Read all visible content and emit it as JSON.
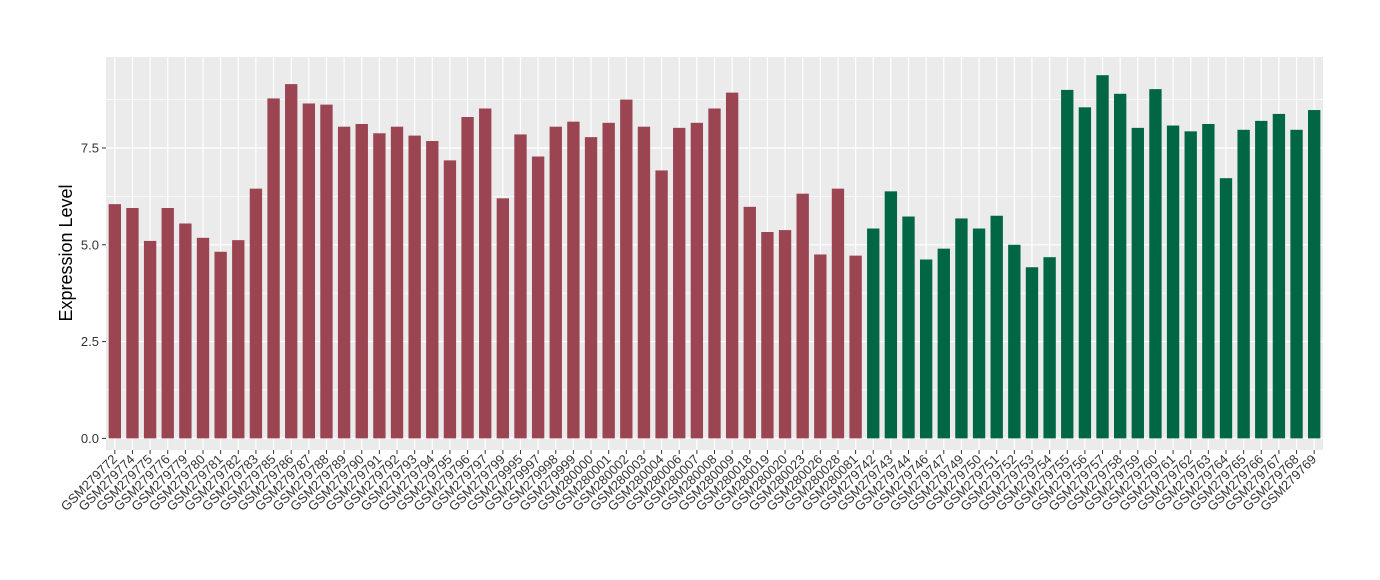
{
  "chart_data": {
    "type": "bar",
    "title": "",
    "xlabel": "",
    "ylabel": "Expression Level",
    "ylim": [
      -0.3,
      9.85
    ],
    "yticks": [
      "0.0",
      "2.5",
      "5.0",
      "7.5"
    ],
    "ytick_values": [
      0,
      2.5,
      5.0,
      7.5
    ],
    "grid": true,
    "legend": "none",
    "background_color": "#EBEBEB",
    "grid_color": "#FFFFFF",
    "categories": [
      "GSM279772",
      "GSM279774",
      "GSM279775",
      "GSM279776",
      "GSM279779",
      "GSM279780",
      "GSM279781",
      "GSM279782",
      "GSM279783",
      "GSM279785",
      "GSM279786",
      "GSM279787",
      "GSM279788",
      "GSM279789",
      "GSM279790",
      "GSM279791",
      "GSM279792",
      "GSM279793",
      "GSM279794",
      "GSM279795",
      "GSM279796",
      "GSM279797",
      "GSM279799",
      "GSM279995",
      "GSM279997",
      "GSM279998",
      "GSM279999",
      "GSM280000",
      "GSM280001",
      "GSM280002",
      "GSM280003",
      "GSM280004",
      "GSM280006",
      "GSM280007",
      "GSM280008",
      "GSM280009",
      "GSM280018",
      "GSM280019",
      "GSM280020",
      "GSM280023",
      "GSM280026",
      "GSM280028",
      "GSM280081",
      "GSM279742",
      "GSM279743",
      "GSM279744",
      "GSM279746",
      "GSM279747",
      "GSM279749",
      "GSM279750",
      "GSM279751",
      "GSM279752",
      "GSM279753",
      "GSM279754",
      "GSM279755",
      "GSM279756",
      "GSM279757",
      "GSM279758",
      "GSM279759",
      "GSM279760",
      "GSM279761",
      "GSM279762",
      "GSM279763",
      "GSM279764",
      "GSM279765",
      "GSM279766",
      "GSM279767",
      "GSM279768",
      "GSM279769"
    ],
    "values": [
      6.05,
      5.95,
      5.1,
      5.95,
      5.55,
      5.18,
      4.82,
      5.12,
      6.45,
      8.78,
      9.15,
      8.65,
      8.62,
      8.05,
      8.12,
      7.88,
      8.05,
      7.82,
      7.68,
      7.18,
      8.3,
      8.52,
      6.2,
      7.85,
      7.28,
      8.05,
      8.18,
      7.78,
      8.15,
      8.75,
      8.05,
      6.92,
      8.02,
      8.15,
      8.52,
      8.93,
      5.98,
      5.33,
      5.38,
      6.32,
      4.75,
      6.45,
      4.72,
      5.42,
      6.38,
      5.73,
      4.62,
      4.9,
      5.68,
      5.42,
      5.75,
      5.0,
      4.42,
      4.68,
      9.0,
      8.55,
      9.38,
      8.9,
      8.02,
      9.02,
      8.08,
      7.93,
      8.12,
      6.72,
      7.97,
      8.2,
      8.38,
      7.97,
      8.48
    ],
    "colors": [
      "#9B4452",
      "#9B4452",
      "#9B4452",
      "#9B4452",
      "#9B4452",
      "#9B4452",
      "#9B4452",
      "#9B4452",
      "#9B4452",
      "#9B4452",
      "#9B4452",
      "#9B4452",
      "#9B4452",
      "#9B4452",
      "#9B4452",
      "#9B4452",
      "#9B4452",
      "#9B4452",
      "#9B4452",
      "#9B4452",
      "#9B4452",
      "#9B4452",
      "#9B4452",
      "#9B4452",
      "#9B4452",
      "#9B4452",
      "#9B4452",
      "#9B4452",
      "#9B4452",
      "#9B4452",
      "#9B4452",
      "#9B4452",
      "#9B4452",
      "#9B4452",
      "#9B4452",
      "#9B4452",
      "#9B4452",
      "#9B4452",
      "#9B4452",
      "#9B4452",
      "#9B4452",
      "#9B4452",
      "#9B4452",
      "#006644",
      "#006644",
      "#006644",
      "#006644",
      "#006644",
      "#006644",
      "#006644",
      "#006644",
      "#006644",
      "#006644",
      "#006644",
      "#006644",
      "#006644",
      "#006644",
      "#006644",
      "#006644",
      "#006644",
      "#006644",
      "#006644",
      "#006644",
      "#006644",
      "#006644",
      "#006644",
      "#006644",
      "#006644",
      "#006644"
    ]
  }
}
